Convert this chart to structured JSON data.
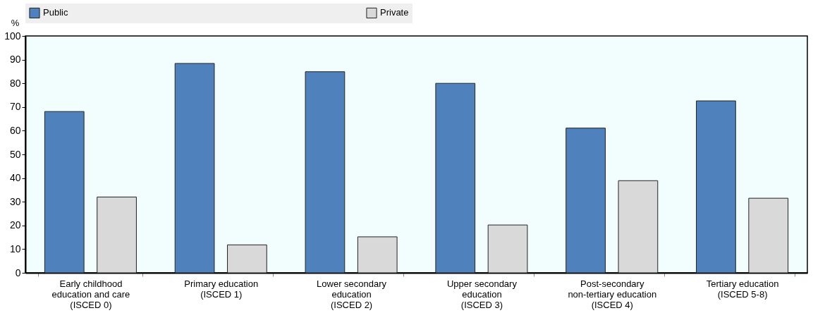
{
  "chart_data": {
    "type": "bar",
    "ylabel": "%",
    "categories": [
      "Early childhood\neducation and care\n(ISCED 0)",
      "Primary education\n(ISCED 1)",
      "Lower secondary\neducation\n(ISCED 2)",
      "Upper secondary\neducation\n(ISCED 3)",
      "Post-secondary\nnon-tertiary education\n(ISCED 4)",
      "Tertiary education\n(ISCED 5-8)"
    ],
    "series": [
      {
        "name": "Public",
        "color": "#4f81bd",
        "values": [
          68.1,
          88.4,
          84.9,
          80.0,
          61.1,
          72.6
        ]
      },
      {
        "name": "Private",
        "color": "#d9d9d9",
        "values": [
          32.0,
          11.8,
          15.2,
          20.2,
          38.9,
          31.5
        ]
      }
    ],
    "ylim": [
      0,
      100
    ],
    "yticks": [
      0,
      10,
      20,
      30,
      40,
      50,
      60,
      70,
      80,
      90,
      100
    ],
    "grid": false,
    "legend": "top"
  }
}
